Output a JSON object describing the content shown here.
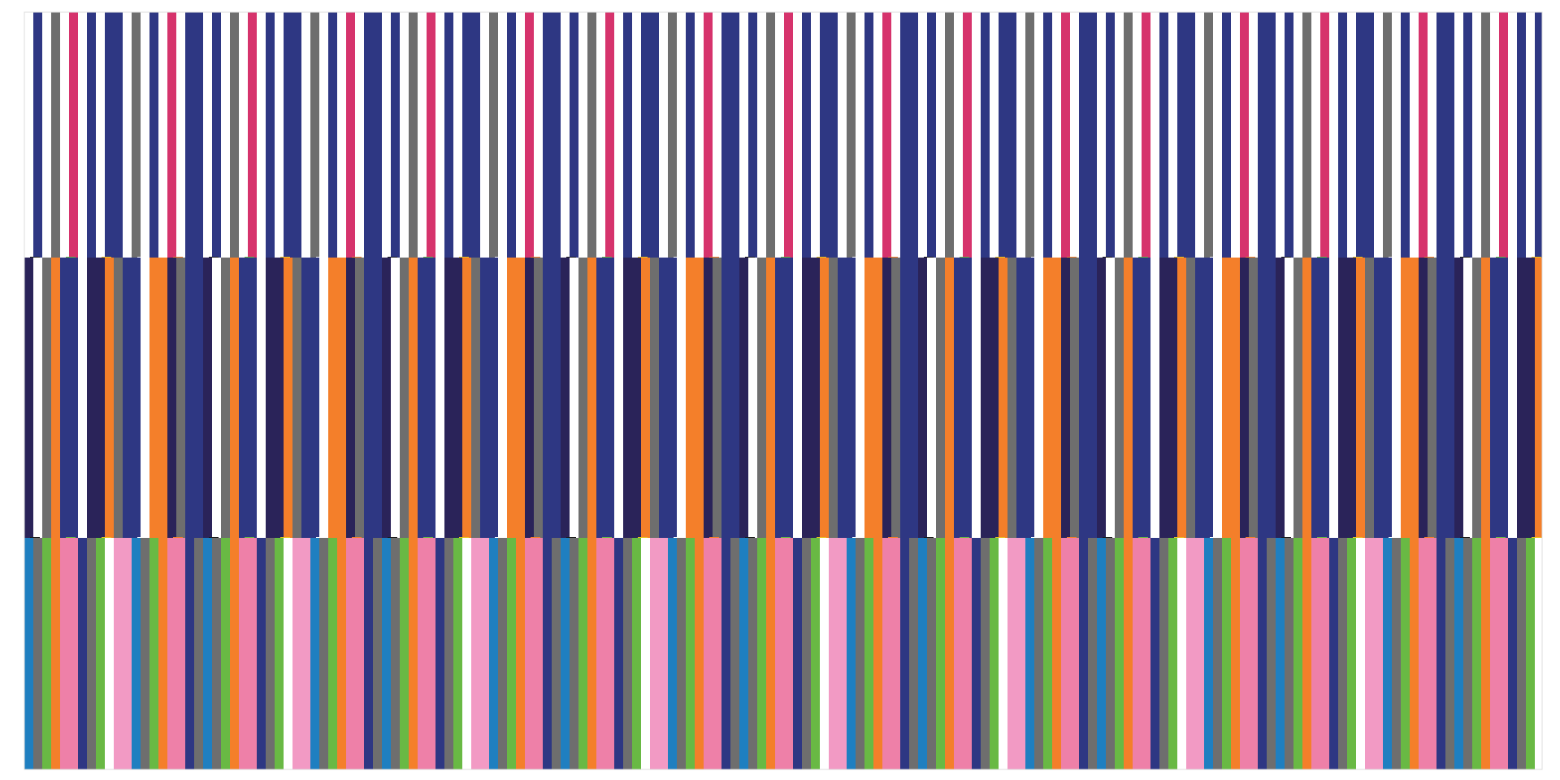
{
  "palette": {
    "navy": "#2e3783",
    "dark_navy": "#2a2359",
    "orange": "#f47f2a",
    "green": "#69b944",
    "pink": "#ee80a8",
    "light_pink": "#f29ac4",
    "blue": "#1f7fc0",
    "gray": "#6e6e6e",
    "magenta_line": "#d6336c",
    "yellow": "#e8c21f",
    "black": "#1a1a1a",
    "white": "#ffffff"
  },
  "bands": [
    {
      "name": "top-stripe-band",
      "pattern": [
        "white",
        "navy",
        "white",
        "gray",
        "white",
        "magenta_line",
        "white",
        "navy",
        "white",
        "navy",
        "navy",
        "white",
        "gray",
        "white",
        "navy",
        "white",
        "magenta_line",
        "white",
        "navy",
        "navy"
      ]
    },
    {
      "name": "middle-stripe-band",
      "pattern": [
        "dark_navy",
        "white",
        "gray",
        "orange",
        "navy",
        "navy",
        "white",
        "dark_navy",
        "dark_navy",
        "orange",
        "gray",
        "navy",
        "navy",
        "white",
        "orange",
        "orange",
        "dark_navy",
        "gray",
        "navy",
        "navy"
      ]
    },
    {
      "name": "bottom-stripe-band",
      "pattern": [
        "blue",
        "gray",
        "green",
        "orange",
        "pink",
        "pink",
        "navy",
        "gray",
        "green",
        "white",
        "light_pink",
        "light_pink",
        "blue",
        "gray",
        "green",
        "orange",
        "pink",
        "pink",
        "navy",
        "gray"
      ]
    }
  ],
  "divider_markers": [
    "black",
    "green",
    "yellow",
    "white",
    "orange"
  ]
}
